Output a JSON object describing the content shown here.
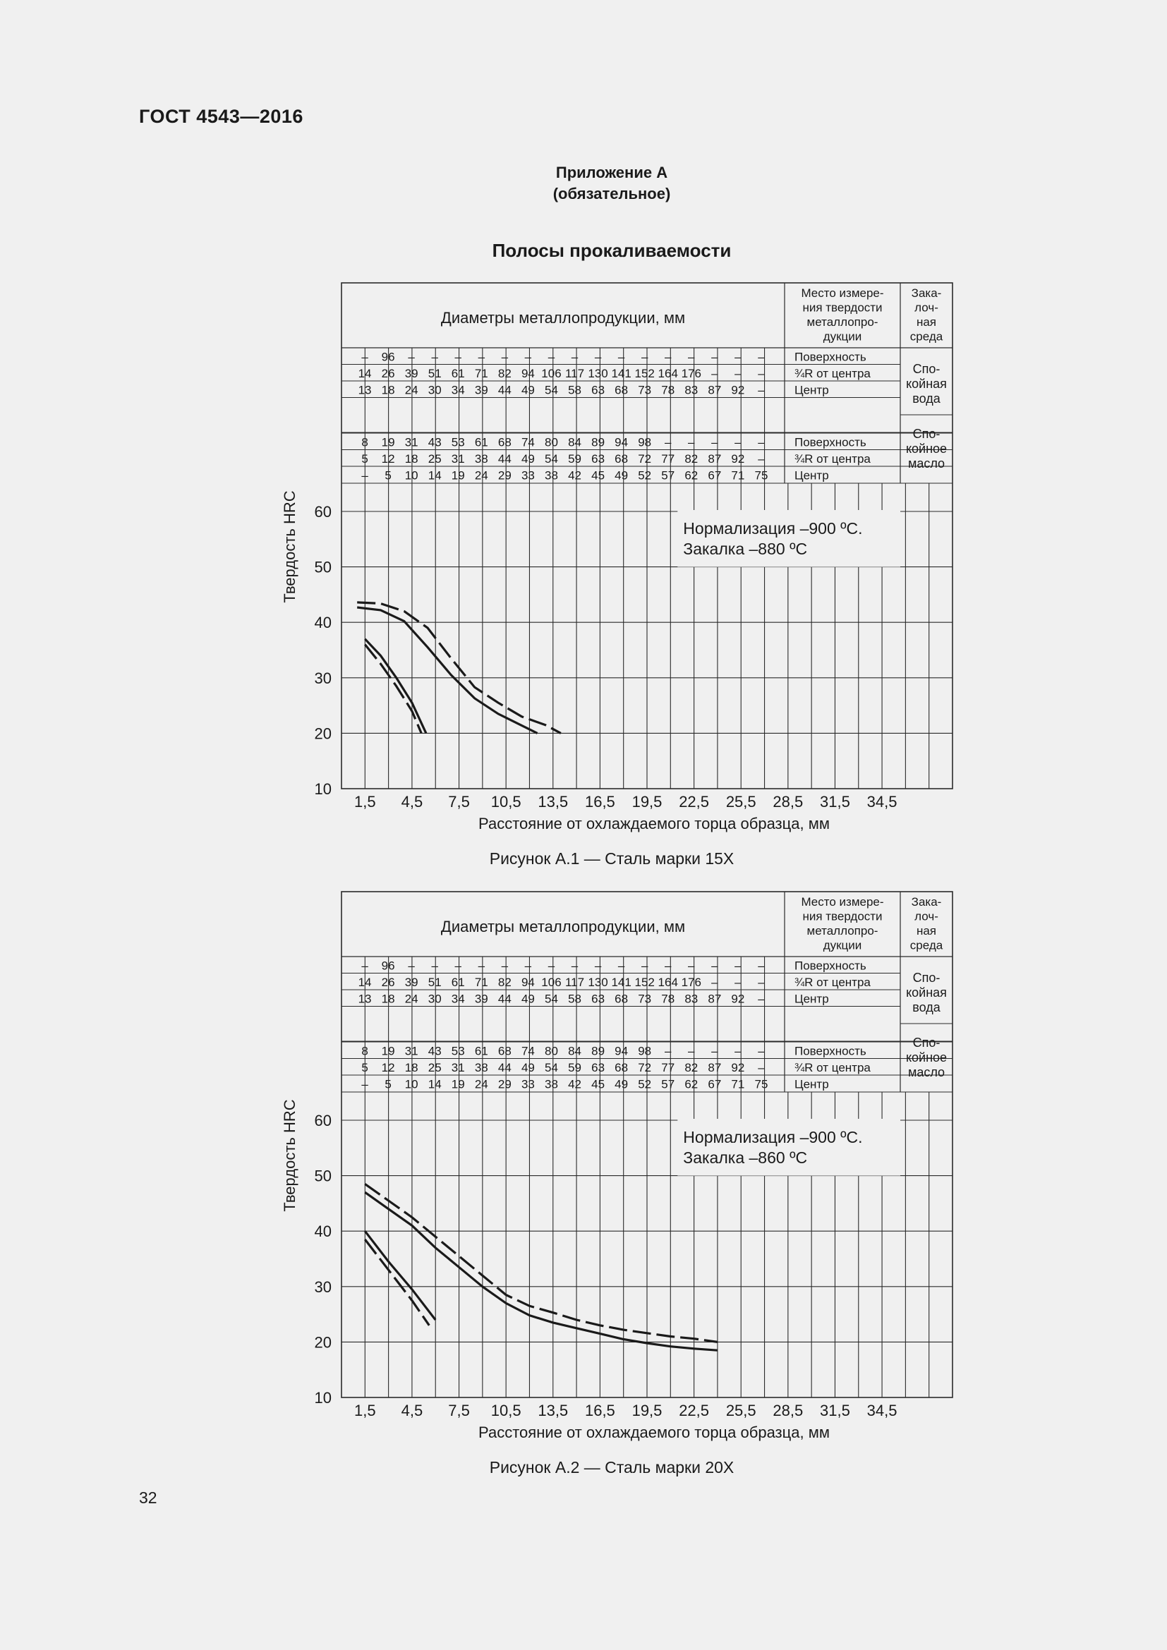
{
  "header": {
    "doc_code": "ГОСТ 4543—2016"
  },
  "appendix": {
    "title": "Приложение А",
    "subtitle": "(обязательное)"
  },
  "section_title": "Полосы прокаливаемости",
  "page_number": "32",
  "table_labels": {
    "diameters": "Диаметры металлопродукции, мм",
    "measure_place": [
      "Место измере-",
      "ния твердости",
      "металлопро-",
      "дукции"
    ],
    "quench_medium": [
      "Зака-",
      "лоч-",
      "ная",
      "среда"
    ],
    "rows_water": [
      {
        "values": [
          "–",
          "96",
          "–",
          "–",
          "–",
          "–",
          "–",
          "–",
          "–",
          "–",
          "–",
          "–",
          "–",
          "–",
          "–",
          "–",
          "–",
          "–"
        ],
        "place": "Поверхность"
      },
      {
        "values": [
          "14",
          "26",
          "39",
          "51",
          "61",
          "71",
          "82",
          "94",
          "106",
          "117",
          "130",
          "141",
          "152",
          "164",
          "176",
          "–",
          "–",
          "–"
        ],
        "place": "¾R от центра"
      },
      {
        "values": [
          "13",
          "18",
          "24",
          "30",
          "34",
          "39",
          "44",
          "49",
          "54",
          "58",
          "63",
          "68",
          "73",
          "78",
          "83",
          "87",
          "92",
          "–"
        ],
        "place": "Центр"
      }
    ],
    "rows_oil": [
      {
        "values": [
          "8",
          "19",
          "31",
          "43",
          "53",
          "61",
          "68",
          "74",
          "80",
          "84",
          "89",
          "94",
          "98",
          "–",
          "–",
          "–",
          "–",
          "–"
        ],
        "place": "Поверхность"
      },
      {
        "values": [
          "5",
          "12",
          "18",
          "25",
          "31",
          "38",
          "44",
          "49",
          "54",
          "59",
          "63",
          "68",
          "72",
          "77",
          "82",
          "87",
          "92",
          "–"
        ],
        "place": "¾R от центра"
      },
      {
        "values": [
          "–",
          "5",
          "10",
          "14",
          "19",
          "24",
          "29",
          "33",
          "38",
          "42",
          "45",
          "49",
          "52",
          "57",
          "62",
          "67",
          "71",
          "75"
        ],
        "place": "Центр"
      }
    ],
    "medium_water": [
      "Спо-",
      "койная",
      "вода"
    ],
    "medium_oil": [
      "Спо-",
      "койное",
      "масло"
    ]
  },
  "chart_data": [
    {
      "type": "line",
      "ylabel": "Твердость HRC",
      "xlabel": "Расстояние от охлаждаемого торца образца, мм",
      "x_ticks": [
        "1,5",
        "4,5",
        "7,5",
        "10,5",
        "13,5",
        "16,5",
        "19,5",
        "22,5",
        "25,5",
        "28,5",
        "31,5",
        "34,5"
      ],
      "y_ticks": [
        60,
        50,
        40,
        30,
        20,
        10
      ],
      "ylim": [
        10,
        60
      ],
      "xlim": [
        0,
        40.5
      ],
      "annotation": [
        "Нормализация –900 ºС.",
        "Закалка –880 ºС"
      ],
      "series": [
        {
          "style": "dashed",
          "x": [
            1.0,
            2.5,
            4.0,
            5.5,
            7.0,
            8.5,
            10.0,
            11.5,
            13.0,
            14.0
          ],
          "y": [
            43.6,
            43.4,
            42.0,
            39.0,
            33.5,
            28.3,
            25.5,
            23.0,
            21.5,
            20.0
          ]
        },
        {
          "style": "solid",
          "x": [
            1.0,
            2.5,
            4.0,
            5.5,
            7.0,
            8.5,
            10.0,
            11.5,
            12.5
          ],
          "y": [
            42.7,
            42.2,
            40.2,
            35.5,
            30.5,
            26.3,
            23.5,
            21.4,
            20.0
          ]
        },
        {
          "style": "solid",
          "x": [
            1.5,
            2.5,
            3.5,
            4.5,
            5.4
          ],
          "y": [
            37.0,
            34.0,
            30.0,
            25.5,
            20.0
          ]
        },
        {
          "style": "dashed",
          "x": [
            1.5,
            2.5,
            3.5,
            4.5,
            5.1
          ],
          "y": [
            36.0,
            32.5,
            28.5,
            24.0,
            20.0
          ]
        }
      ],
      "caption": "Рисунок А.1 — Сталь марки 15Х"
    },
    {
      "type": "line",
      "ylabel": "Твердость HRC",
      "xlabel": "Расстояние от охлаждаемого торца образца, мм",
      "x_ticks": [
        "1,5",
        "4,5",
        "7,5",
        "10,5",
        "13,5",
        "16,5",
        "19,5",
        "22,5",
        "25,5",
        "28,5",
        "31,5",
        "34,5"
      ],
      "y_ticks": [
        60,
        50,
        40,
        30,
        20,
        10
      ],
      "ylim": [
        10,
        60
      ],
      "xlim": [
        0,
        40.5
      ],
      "annotation": [
        "Нормализация –900 ºС.",
        "Закалка –860 ºС"
      ],
      "series": [
        {
          "style": "dashed",
          "x": [
            1.5,
            3.0,
            4.5,
            6.0,
            7.5,
            9.0,
            10.5,
            12.0,
            13.5,
            15.0,
            16.5,
            18.0,
            19.5,
            21.0,
            22.5,
            24.0
          ],
          "y": [
            48.5,
            45.5,
            42.5,
            39.0,
            35.5,
            32.0,
            28.5,
            26.5,
            25.3,
            24.0,
            23.0,
            22.2,
            21.6,
            21.0,
            20.6,
            20.0
          ]
        },
        {
          "style": "solid",
          "x": [
            1.5,
            3.0,
            4.5,
            6.0,
            7.5,
            9.0,
            10.5,
            12.0,
            13.5,
            15.0,
            16.5,
            18.0,
            19.5,
            21.0,
            22.5,
            24.0
          ],
          "y": [
            47.0,
            44.0,
            41.0,
            37.0,
            33.5,
            30.0,
            27.0,
            24.8,
            23.5,
            22.5,
            21.5,
            20.5,
            19.8,
            19.2,
            18.8,
            18.5
          ]
        },
        {
          "style": "solid",
          "x": [
            1.5,
            3.0,
            4.5,
            6.0
          ],
          "y": [
            40.0,
            34.5,
            29.5,
            24.0
          ]
        },
        {
          "style": "dashed",
          "x": [
            1.5,
            3.0,
            4.5,
            5.6
          ],
          "y": [
            38.5,
            33.0,
            27.5,
            23.0
          ]
        }
      ],
      "caption": "Рисунок А.2 — Сталь марки 20Х"
    }
  ]
}
